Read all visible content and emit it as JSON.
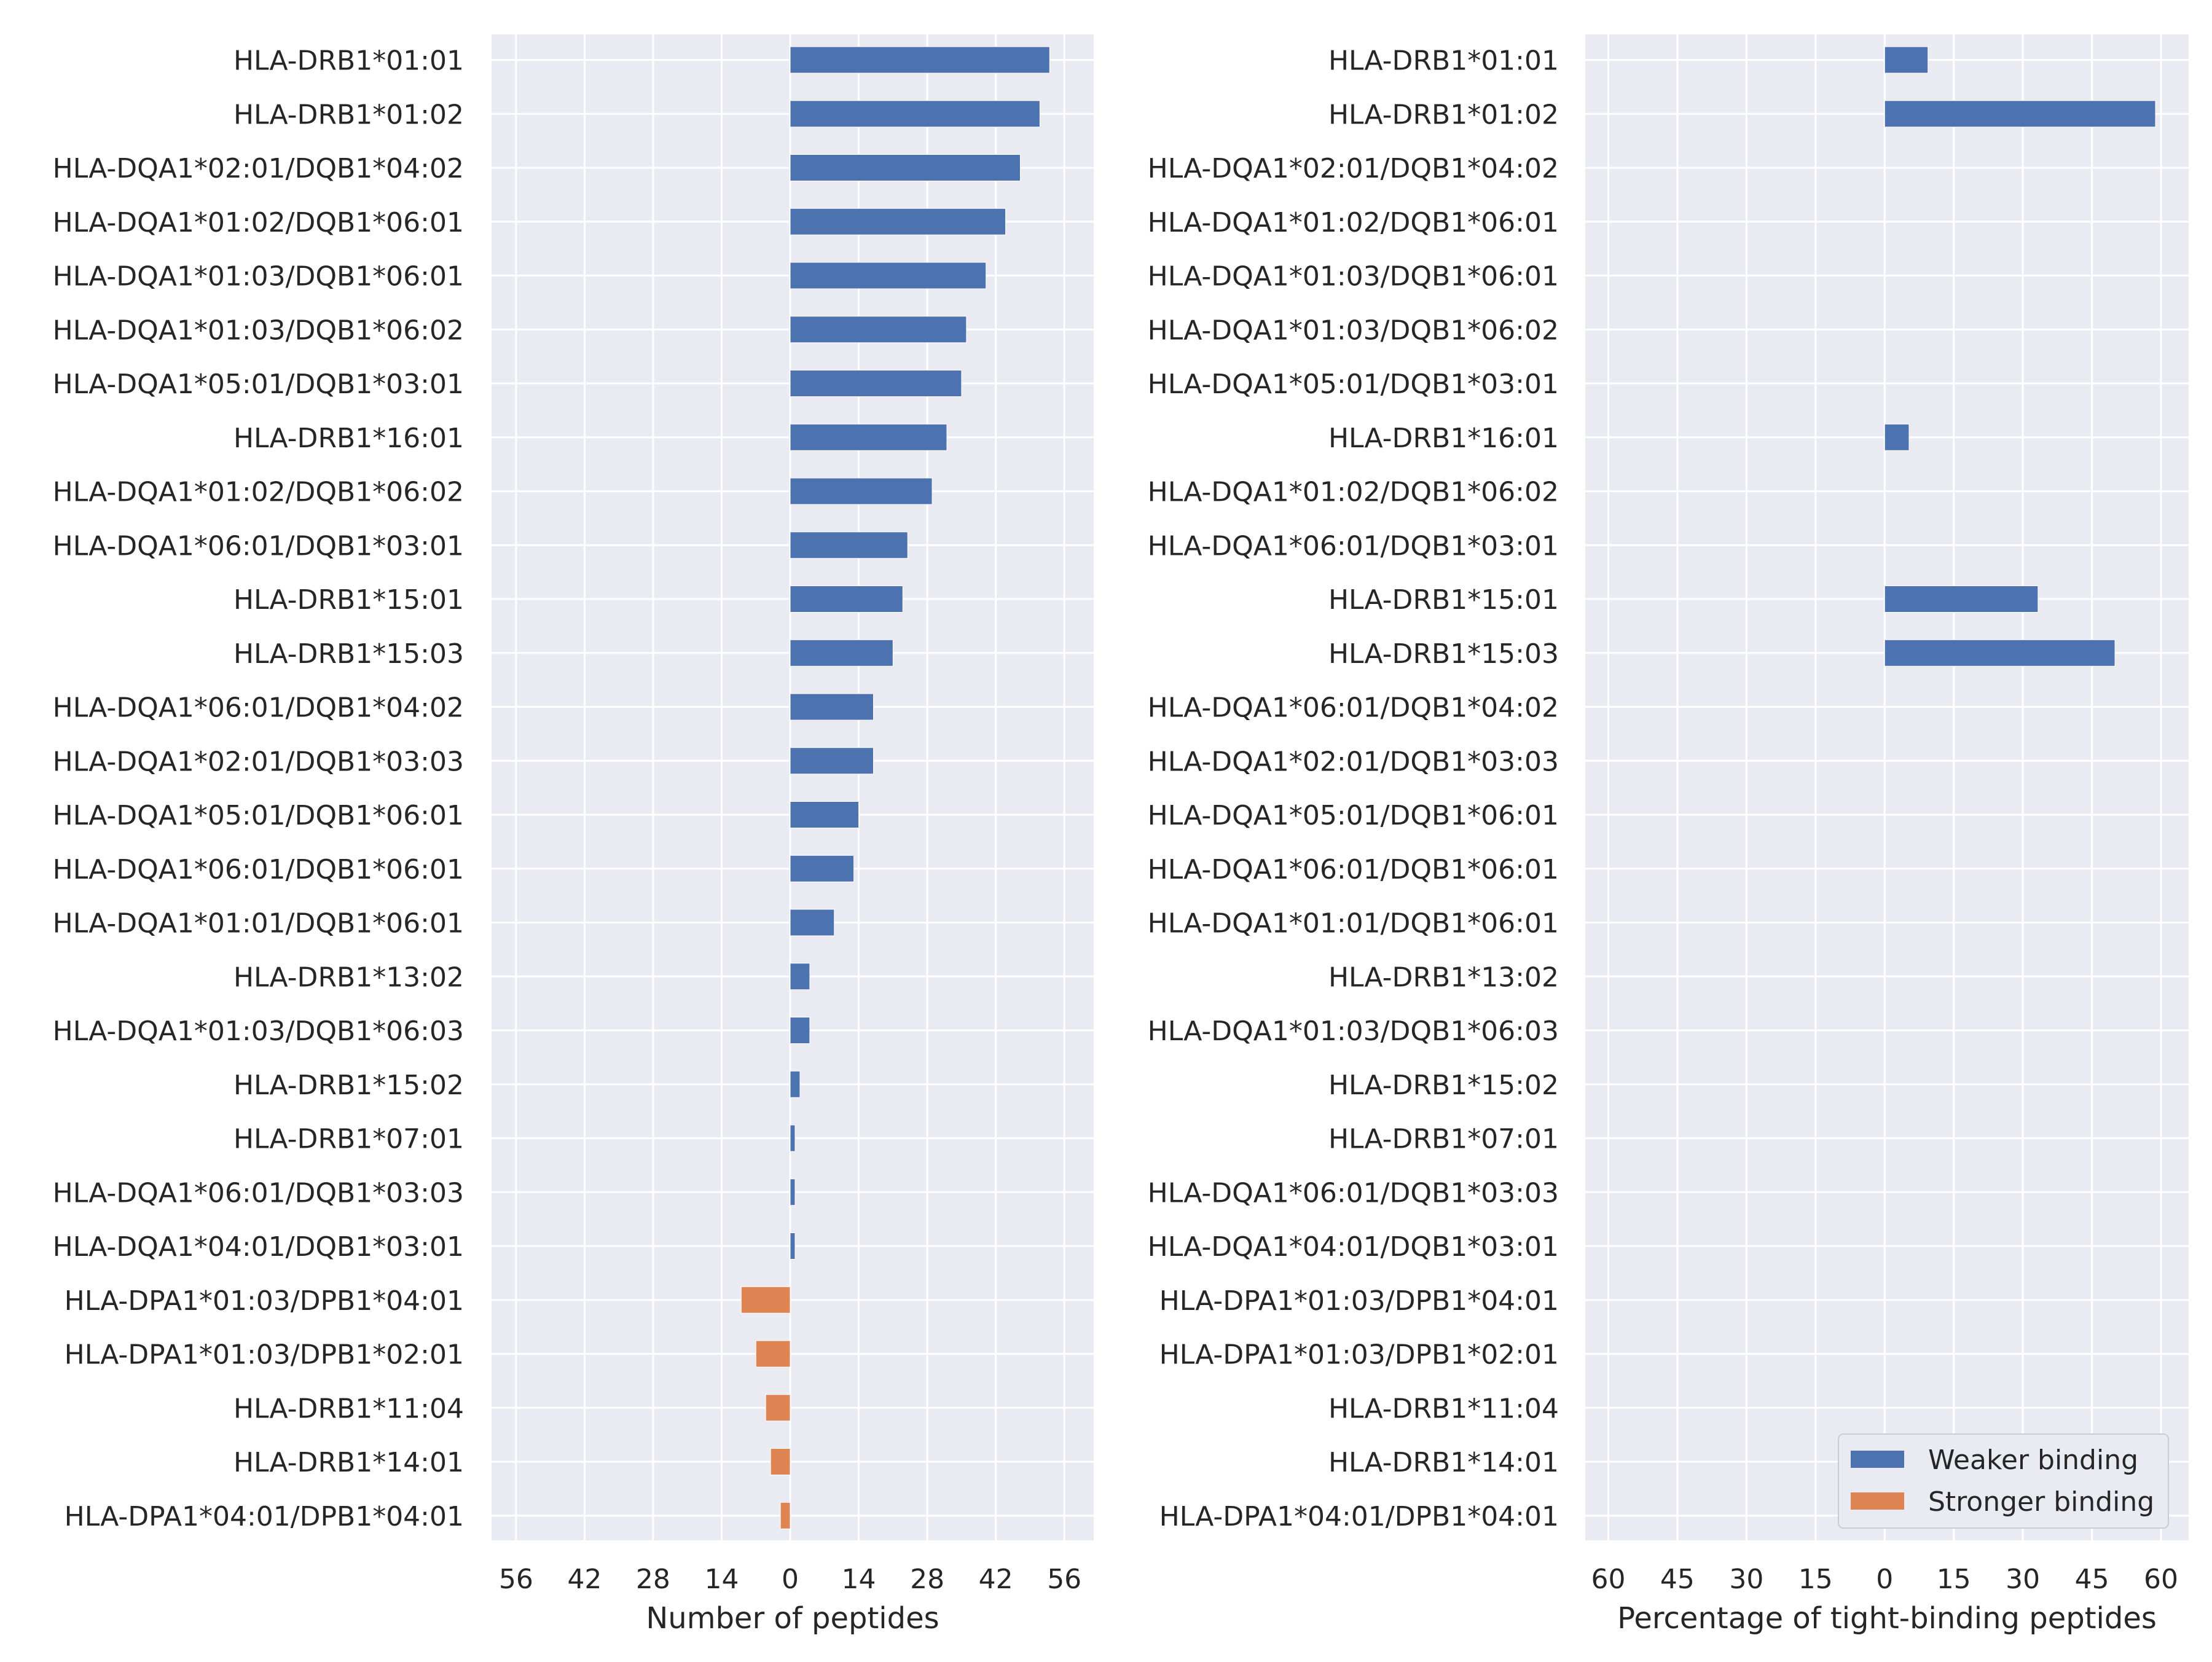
{
  "colors": {
    "background": "#EAEAF2",
    "grid": "#FFFFFF",
    "weaker": "#4C72B0",
    "stronger": "#DD8452",
    "text": "#262626"
  },
  "chart_data": [
    {
      "type": "bar",
      "orientation": "horizontal",
      "xlabel": "Number of peptides",
      "xlim": [
        -61,
        62
      ],
      "xticks": [
        -56,
        -42,
        -28,
        -14,
        0,
        14,
        28,
        42,
        56
      ],
      "xtick_labels": [
        "56",
        "42",
        "28",
        "14",
        "0",
        "14",
        "28",
        "42",
        "56"
      ],
      "grid": true,
      "categories": [
        "HLA-DRB1*01:01",
        "HLA-DRB1*01:02",
        "HLA-DQA1*02:01/DQB1*04:02",
        "HLA-DQA1*01:02/DQB1*06:01",
        "HLA-DQA1*01:03/DQB1*06:01",
        "HLA-DQA1*01:03/DQB1*06:02",
        "HLA-DQA1*05:01/DQB1*03:01",
        "HLA-DRB1*16:01",
        "HLA-DQA1*01:02/DQB1*06:02",
        "HLA-DQA1*06:01/DQB1*03:01",
        "HLA-DRB1*15:01",
        "HLA-DRB1*15:03",
        "HLA-DQA1*06:01/DQB1*04:02",
        "HLA-DQA1*02:01/DQB1*03:03",
        "HLA-DQA1*05:01/DQB1*06:01",
        "HLA-DQA1*06:01/DQB1*06:01",
        "HLA-DQA1*01:01/DQB1*06:01",
        "HLA-DRB1*13:02",
        "HLA-DQA1*01:03/DQB1*06:03",
        "HLA-DRB1*15:02",
        "HLA-DRB1*07:01",
        "HLA-DQA1*06:01/DQB1*03:03",
        "HLA-DQA1*04:01/DQB1*03:01",
        "HLA-DPA1*01:03/DPB1*04:01",
        "HLA-DPA1*01:03/DPB1*02:01",
        "HLA-DRB1*11:04",
        "HLA-DRB1*14:01",
        "HLA-DPA1*04:01/DPB1*04:01"
      ],
      "series": [
        {
          "name": "Weaker binding",
          "color": "#4C72B0",
          "values": [
            53,
            51,
            47,
            44,
            40,
            36,
            35,
            32,
            29,
            24,
            23,
            21,
            17,
            17,
            14,
            13,
            9,
            4,
            4,
            2,
            1,
            1,
            1,
            0,
            0,
            0,
            0,
            0
          ]
        },
        {
          "name": "Stronger binding",
          "color": "#DD8452",
          "values": [
            0,
            0,
            0,
            0,
            0,
            0,
            0,
            0,
            0,
            0,
            0,
            0,
            0,
            0,
            0,
            0,
            0,
            0,
            0,
            0,
            0,
            0,
            0,
            -10,
            -7,
            -5,
            -4,
            -2
          ]
        }
      ]
    },
    {
      "type": "bar",
      "orientation": "horizontal",
      "xlabel": "Percentage of tight-binding peptides",
      "xlim": [
        -65,
        66
      ],
      "xticks": [
        -60,
        -45,
        -30,
        -15,
        0,
        15,
        30,
        45,
        60
      ],
      "xtick_labels": [
        "60",
        "45",
        "30",
        "15",
        "0",
        "15",
        "30",
        "45",
        "60"
      ],
      "grid": true,
      "legend": {
        "position": "lower right",
        "entries": [
          "Weaker binding",
          "Stronger binding"
        ]
      },
      "categories": [
        "HLA-DRB1*01:01",
        "HLA-DRB1*01:02",
        "HLA-DQA1*02:01/DQB1*04:02",
        "HLA-DQA1*01:02/DQB1*06:01",
        "HLA-DQA1*01:03/DQB1*06:01",
        "HLA-DQA1*01:03/DQB1*06:02",
        "HLA-DQA1*05:01/DQB1*03:01",
        "HLA-DRB1*16:01",
        "HLA-DQA1*01:02/DQB1*06:02",
        "HLA-DQA1*06:01/DQB1*03:01",
        "HLA-DRB1*15:01",
        "HLA-DRB1*15:03",
        "HLA-DQA1*06:01/DQB1*04:02",
        "HLA-DQA1*02:01/DQB1*03:03",
        "HLA-DQA1*05:01/DQB1*06:01",
        "HLA-DQA1*06:01/DQB1*06:01",
        "HLA-DQA1*01:01/DQB1*06:01",
        "HLA-DRB1*13:02",
        "HLA-DQA1*01:03/DQB1*06:03",
        "HLA-DRB1*15:02",
        "HLA-DRB1*07:01",
        "HLA-DQA1*06:01/DQB1*03:03",
        "HLA-DQA1*04:01/DQB1*03:01",
        "HLA-DPA1*01:03/DPB1*04:01",
        "HLA-DPA1*01:03/DPB1*02:01",
        "HLA-DRB1*11:04",
        "HLA-DRB1*14:01",
        "HLA-DPA1*04:01/DPB1*04:01"
      ],
      "series": [
        {
          "name": "Weaker binding",
          "color": "#4C72B0",
          "values": [
            9.4,
            58.8,
            0,
            0,
            0,
            0,
            0,
            5.3,
            0,
            0,
            33.3,
            50,
            0,
            0,
            0,
            0,
            0,
            0,
            0,
            0,
            0,
            0,
            0,
            0,
            0,
            0,
            0,
            0
          ]
        },
        {
          "name": "Stronger binding",
          "color": "#DD8452",
          "values": [
            0,
            0,
            0,
            0,
            0,
            0,
            0,
            0,
            0,
            0,
            0,
            0,
            0,
            0,
            0,
            0,
            0,
            0,
            0,
            0,
            0,
            0,
            0,
            0,
            0,
            0,
            0,
            0
          ]
        }
      ]
    }
  ]
}
